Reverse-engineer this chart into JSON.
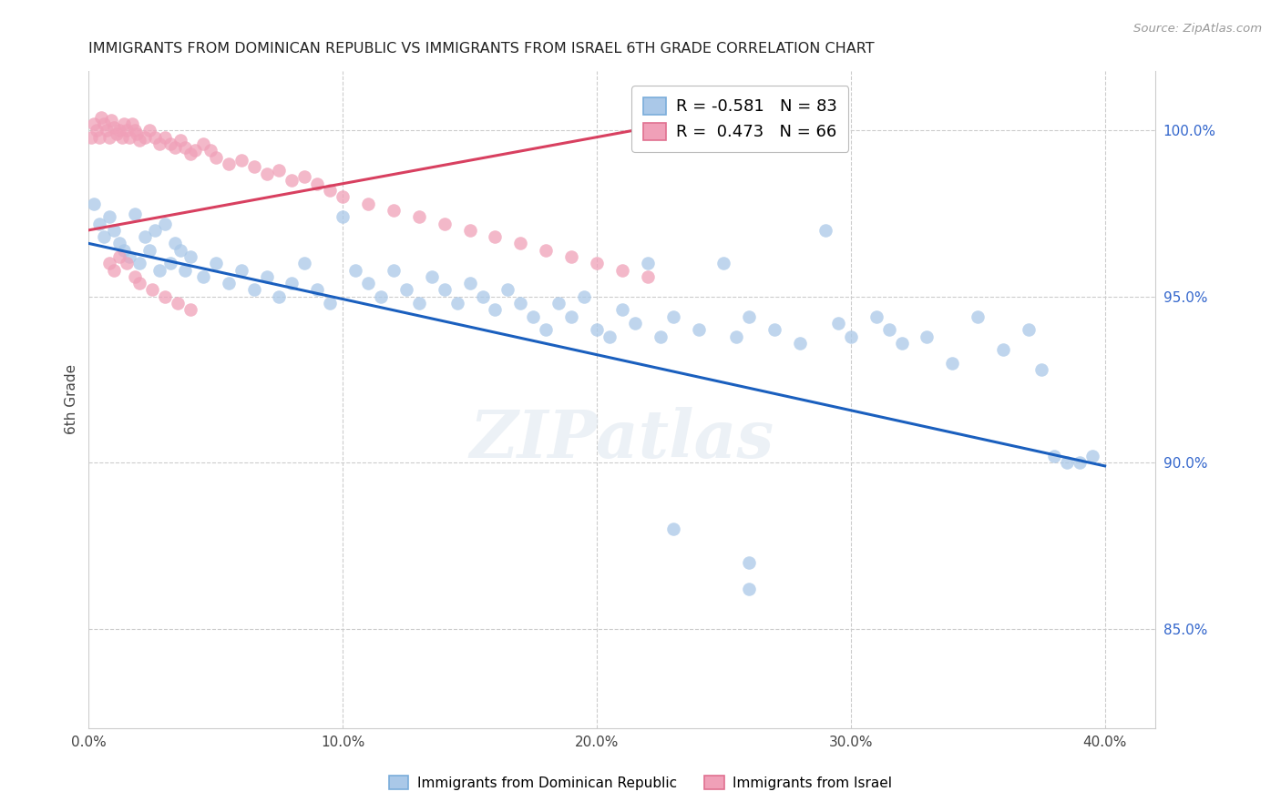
{
  "title": "IMMIGRANTS FROM DOMINICAN REPUBLIC VS IMMIGRANTS FROM ISRAEL 6TH GRADE CORRELATION CHART",
  "source": "Source: ZipAtlas.com",
  "ylabel": "6th Grade",
  "y_ticks": [
    0.85,
    0.9,
    0.95,
    1.0
  ],
  "y_tick_labels": [
    "85.0%",
    "90.0%",
    "95.0%",
    "100.0%"
  ],
  "x_ticks": [
    0.0,
    0.1,
    0.2,
    0.3,
    0.4
  ],
  "x_lim": [
    0.0,
    0.42
  ],
  "y_lim": [
    0.82,
    1.018
  ],
  "legend_blue_r": "-0.581",
  "legend_blue_n": "83",
  "legend_pink_r": "0.473",
  "legend_pink_n": "66",
  "blue_color": "#aac8e8",
  "pink_color": "#f0a0b8",
  "blue_line_color": "#1a5fbe",
  "pink_line_color": "#d84060",
  "watermark": "ZIPatlas",
  "blue_line_x": [
    0.0,
    0.4
  ],
  "blue_line_y": [
    0.966,
    0.899
  ],
  "pink_line_x": [
    0.0,
    0.25
  ],
  "pink_line_y": [
    0.97,
    1.005
  ],
  "blue_points": [
    [
      0.002,
      0.978
    ],
    [
      0.004,
      0.972
    ],
    [
      0.006,
      0.968
    ],
    [
      0.008,
      0.974
    ],
    [
      0.01,
      0.97
    ],
    [
      0.012,
      0.966
    ],
    [
      0.014,
      0.964
    ],
    [
      0.016,
      0.962
    ],
    [
      0.018,
      0.975
    ],
    [
      0.02,
      0.96
    ],
    [
      0.022,
      0.968
    ],
    [
      0.024,
      0.964
    ],
    [
      0.026,
      0.97
    ],
    [
      0.028,
      0.958
    ],
    [
      0.03,
      0.972
    ],
    [
      0.032,
      0.96
    ],
    [
      0.034,
      0.966
    ],
    [
      0.036,
      0.964
    ],
    [
      0.038,
      0.958
    ],
    [
      0.04,
      0.962
    ],
    [
      0.045,
      0.956
    ],
    [
      0.05,
      0.96
    ],
    [
      0.055,
      0.954
    ],
    [
      0.06,
      0.958
    ],
    [
      0.065,
      0.952
    ],
    [
      0.07,
      0.956
    ],
    [
      0.075,
      0.95
    ],
    [
      0.08,
      0.954
    ],
    [
      0.085,
      0.96
    ],
    [
      0.09,
      0.952
    ],
    [
      0.095,
      0.948
    ],
    [
      0.1,
      0.974
    ],
    [
      0.105,
      0.958
    ],
    [
      0.11,
      0.954
    ],
    [
      0.115,
      0.95
    ],
    [
      0.12,
      0.958
    ],
    [
      0.125,
      0.952
    ],
    [
      0.13,
      0.948
    ],
    [
      0.135,
      0.956
    ],
    [
      0.14,
      0.952
    ],
    [
      0.145,
      0.948
    ],
    [
      0.15,
      0.954
    ],
    [
      0.155,
      0.95
    ],
    [
      0.16,
      0.946
    ],
    [
      0.165,
      0.952
    ],
    [
      0.17,
      0.948
    ],
    [
      0.175,
      0.944
    ],
    [
      0.18,
      0.94
    ],
    [
      0.185,
      0.948
    ],
    [
      0.19,
      0.944
    ],
    [
      0.195,
      0.95
    ],
    [
      0.2,
      0.94
    ],
    [
      0.205,
      0.938
    ],
    [
      0.21,
      0.946
    ],
    [
      0.215,
      0.942
    ],
    [
      0.22,
      0.96
    ],
    [
      0.225,
      0.938
    ],
    [
      0.23,
      0.944
    ],
    [
      0.24,
      0.94
    ],
    [
      0.25,
      0.96
    ],
    [
      0.255,
      0.938
    ],
    [
      0.26,
      0.944
    ],
    [
      0.27,
      0.94
    ],
    [
      0.28,
      0.936
    ],
    [
      0.29,
      0.97
    ],
    [
      0.295,
      0.942
    ],
    [
      0.3,
      0.938
    ],
    [
      0.31,
      0.944
    ],
    [
      0.315,
      0.94
    ],
    [
      0.32,
      0.936
    ],
    [
      0.33,
      0.938
    ],
    [
      0.34,
      0.93
    ],
    [
      0.35,
      0.944
    ],
    [
      0.36,
      0.934
    ],
    [
      0.37,
      0.94
    ],
    [
      0.375,
      0.928
    ],
    [
      0.38,
      0.902
    ],
    [
      0.385,
      0.9
    ],
    [
      0.39,
      0.9
    ],
    [
      0.395,
      0.902
    ],
    [
      0.23,
      0.88
    ],
    [
      0.26,
      0.87
    ],
    [
      0.26,
      0.862
    ]
  ],
  "pink_points": [
    [
      0.001,
      0.998
    ],
    [
      0.002,
      1.002
    ],
    [
      0.003,
      1.0
    ],
    [
      0.004,
      0.998
    ],
    [
      0.005,
      1.004
    ],
    [
      0.006,
      1.002
    ],
    [
      0.007,
      1.0
    ],
    [
      0.008,
      0.998
    ],
    [
      0.009,
      1.003
    ],
    [
      0.01,
      1.001
    ],
    [
      0.011,
      0.999
    ],
    [
      0.012,
      1.0
    ],
    [
      0.013,
      0.998
    ],
    [
      0.014,
      1.002
    ],
    [
      0.015,
      1.0
    ],
    [
      0.016,
      0.998
    ],
    [
      0.017,
      1.002
    ],
    [
      0.018,
      1.0
    ],
    [
      0.019,
      0.999
    ],
    [
      0.02,
      0.997
    ],
    [
      0.022,
      0.998
    ],
    [
      0.024,
      1.0
    ],
    [
      0.026,
      0.998
    ],
    [
      0.028,
      0.996
    ],
    [
      0.03,
      0.998
    ],
    [
      0.032,
      0.996
    ],
    [
      0.034,
      0.995
    ],
    [
      0.036,
      0.997
    ],
    [
      0.038,
      0.995
    ],
    [
      0.04,
      0.993
    ],
    [
      0.042,
      0.994
    ],
    [
      0.045,
      0.996
    ],
    [
      0.048,
      0.994
    ],
    [
      0.05,
      0.992
    ],
    [
      0.055,
      0.99
    ],
    [
      0.06,
      0.991
    ],
    [
      0.065,
      0.989
    ],
    [
      0.07,
      0.987
    ],
    [
      0.075,
      0.988
    ],
    [
      0.08,
      0.985
    ],
    [
      0.085,
      0.986
    ],
    [
      0.09,
      0.984
    ],
    [
      0.095,
      0.982
    ],
    [
      0.1,
      0.98
    ],
    [
      0.11,
      0.978
    ],
    [
      0.12,
      0.976
    ],
    [
      0.13,
      0.974
    ],
    [
      0.14,
      0.972
    ],
    [
      0.15,
      0.97
    ],
    [
      0.16,
      0.968
    ],
    [
      0.17,
      0.966
    ],
    [
      0.18,
      0.964
    ],
    [
      0.19,
      0.962
    ],
    [
      0.2,
      0.96
    ],
    [
      0.21,
      0.958
    ],
    [
      0.22,
      0.956
    ],
    [
      0.008,
      0.96
    ],
    [
      0.01,
      0.958
    ],
    [
      0.012,
      0.962
    ],
    [
      0.015,
      0.96
    ],
    [
      0.018,
      0.956
    ],
    [
      0.02,
      0.954
    ],
    [
      0.025,
      0.952
    ],
    [
      0.03,
      0.95
    ],
    [
      0.035,
      0.948
    ],
    [
      0.04,
      0.946
    ]
  ]
}
